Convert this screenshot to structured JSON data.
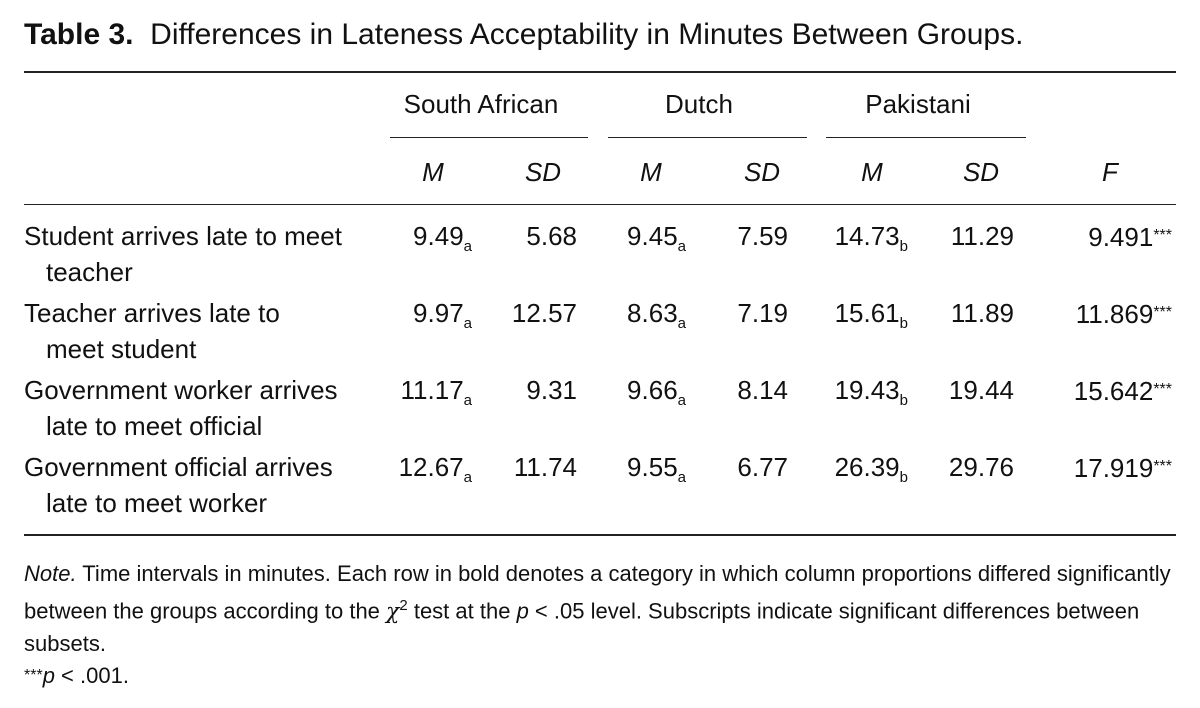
{
  "title": {
    "label": "Table 3.",
    "text": "Differences in Lateness Acceptability in Minutes Between Groups."
  },
  "table": {
    "groups": [
      "South African",
      "Dutch",
      "Pakistani"
    ],
    "columns": [
      "M",
      "SD",
      "M",
      "SD",
      "M",
      "SD",
      "F"
    ],
    "rows": [
      {
        "label": [
          "Student arrives late to meet",
          "teacher"
        ],
        "cells": [
          {
            "value": "9.49",
            "sub": "a"
          },
          {
            "value": "5.68"
          },
          {
            "value": "9.45",
            "sub": "a"
          },
          {
            "value": "7.59"
          },
          {
            "value": "14.73",
            "sub": "b"
          },
          {
            "value": "11.29"
          },
          {
            "value": "9.491",
            "sup": "***"
          }
        ]
      },
      {
        "label": [
          "Teacher arrives late to",
          "meet student"
        ],
        "cells": [
          {
            "value": "9.97",
            "sub": "a"
          },
          {
            "value": "12.57"
          },
          {
            "value": "8.63",
            "sub": "a"
          },
          {
            "value": "7.19"
          },
          {
            "value": "15.61",
            "sub": "b"
          },
          {
            "value": "11.89"
          },
          {
            "value": "11.869",
            "sup": "***"
          }
        ]
      },
      {
        "label": [
          "Government worker arrives",
          "late to meet official"
        ],
        "cells": [
          {
            "value": "11.17",
            "sub": "a"
          },
          {
            "value": "9.31"
          },
          {
            "value": "9.66",
            "sub": "a"
          },
          {
            "value": "8.14"
          },
          {
            "value": "19.43",
            "sub": "b"
          },
          {
            "value": "19.44"
          },
          {
            "value": "15.642",
            "sup": "***"
          }
        ]
      },
      {
        "label": [
          "Government official arrives",
          "late to meet worker"
        ],
        "cells": [
          {
            "value": "12.67",
            "sub": "a"
          },
          {
            "value": "11.74"
          },
          {
            "value": "9.55",
            "sub": "a"
          },
          {
            "value": "6.77"
          },
          {
            "value": "26.39",
            "sub": "b"
          },
          {
            "value": "29.76"
          },
          {
            "value": "17.919",
            "sup": "***"
          }
        ]
      }
    ]
  },
  "note": {
    "label": "Note.",
    "parts": [
      " Time intervals in minutes. Each row in bold denotes a category in which column proportions differed significantly between the groups according to the ",
      "χ",
      "2",
      " test at the ",
      "p",
      " < .05 level. Subscripts indicate significant differences between subsets."
    ],
    "footnote": [
      "***",
      "p",
      " < .001."
    ]
  }
}
